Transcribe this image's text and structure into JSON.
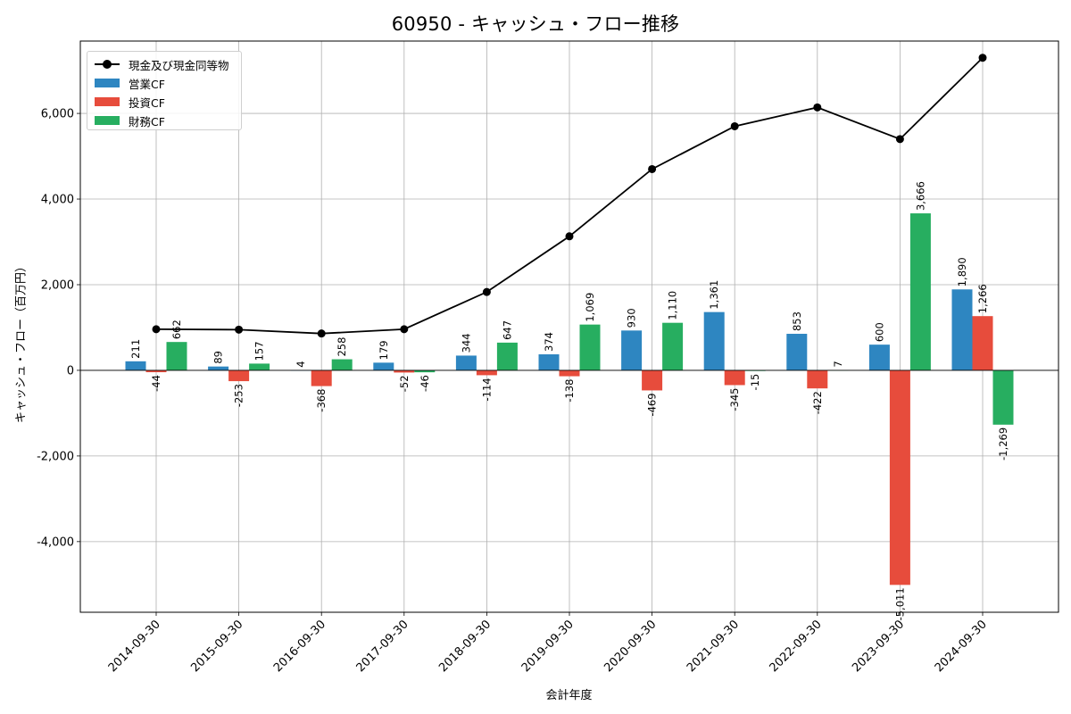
{
  "chart_data": {
    "type": "bar",
    "title": "60950 - キャッシュ・フロー推移",
    "xlabel": "会計年度",
    "ylabel": "キャッシュ・フロー（百万円）",
    "categories": [
      "2014-09-30",
      "2015-09-30",
      "2016-09-30",
      "2017-09-30",
      "2018-09-30",
      "2019-09-30",
      "2020-09-30",
      "2021-09-30",
      "2022-09-30",
      "2023-09-30",
      "2024-09-30"
    ],
    "ylim": [
      -5650,
      7690
    ],
    "yticks": [
      -4000,
      -2000,
      0,
      2000,
      4000,
      6000
    ],
    "ytick_labels": [
      "-4,000",
      "-2,000",
      "0",
      "2,000",
      "4,000",
      "6,000"
    ],
    "grid": true,
    "legend_position": "top-left",
    "series": [
      {
        "name": "営業CF",
        "kind": "bar",
        "color": "#2e86c1",
        "values": [
          211,
          89,
          4,
          179,
          344,
          374,
          930,
          1361,
          853,
          600,
          1890
        ],
        "labels": [
          "211",
          "89",
          "4",
          "179",
          "344",
          "374",
          "930",
          "1,361",
          "853",
          "600",
          "1,890"
        ]
      },
      {
        "name": "投資CF",
        "kind": "bar",
        "color": "#e74c3c",
        "values": [
          -44,
          -253,
          -368,
          -52,
          -114,
          -138,
          -469,
          -345,
          -422,
          -5011,
          1266
        ],
        "labels": [
          "-44",
          "-253",
          "-368",
          "-52",
          "-114",
          "-138",
          "-469",
          "-345",
          "-422",
          "-5,011",
          "1,266"
        ]
      },
      {
        "name": "財務CF",
        "kind": "bar",
        "color": "#27ae60",
        "values": [
          662,
          157,
          258,
          -46,
          647,
          1069,
          1110,
          -15,
          7,
          3666,
          -1269
        ],
        "labels": [
          "662",
          "157",
          "258",
          "-46",
          "647",
          "1,069",
          "1,110",
          "-15",
          "7",
          "3,666",
          "-1,269"
        ]
      },
      {
        "name": "現金及び現金同等物",
        "kind": "line",
        "color": "#000000",
        "values": [
          960,
          950,
          860,
          960,
          1830,
          3130,
          4700,
          5700,
          6140,
          5400,
          7300
        ]
      }
    ]
  }
}
